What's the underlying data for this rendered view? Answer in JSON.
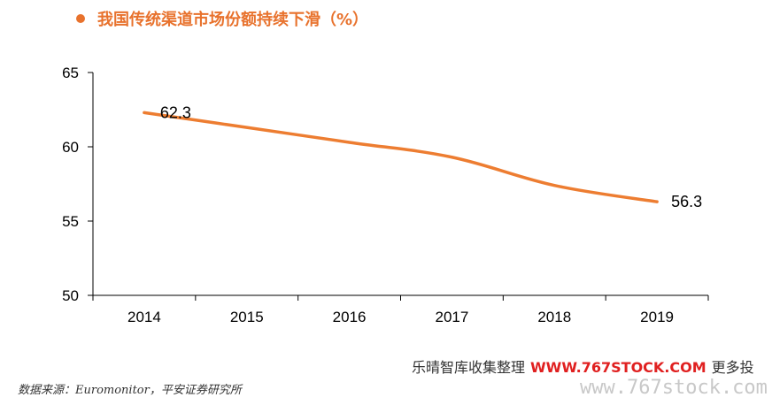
{
  "header": {
    "title": "我国传统渠道市场份额持续下滑（%）"
  },
  "source_note": "数据来源：Euromonitor，平安证券研究所",
  "watermark": {
    "prefix": "乐晴智库收集整理",
    "url": "WWW.767STOCK.COM",
    "suffix": "更多投",
    "domain": "www.767stock.com"
  },
  "colors": {
    "accent": "#e8722d",
    "line": "#ed7d31"
  },
  "chart_data": {
    "type": "line",
    "title": "",
    "xlabel": "",
    "ylabel": "",
    "categories": [
      "2014",
      "2015",
      "2016",
      "2017",
      "2018",
      "2019"
    ],
    "series": [
      {
        "values": [
          62.3,
          61.3,
          60.3,
          59.3,
          57.4,
          56.3
        ]
      }
    ],
    "data_labels": [
      {
        "index": 0,
        "text": "62.3"
      },
      {
        "index": 5,
        "text": "56.3"
      }
    ],
    "ylim": [
      50,
      65
    ],
    "yticks": [
      50,
      55,
      60,
      65
    ],
    "grid": false,
    "legend": "none"
  }
}
